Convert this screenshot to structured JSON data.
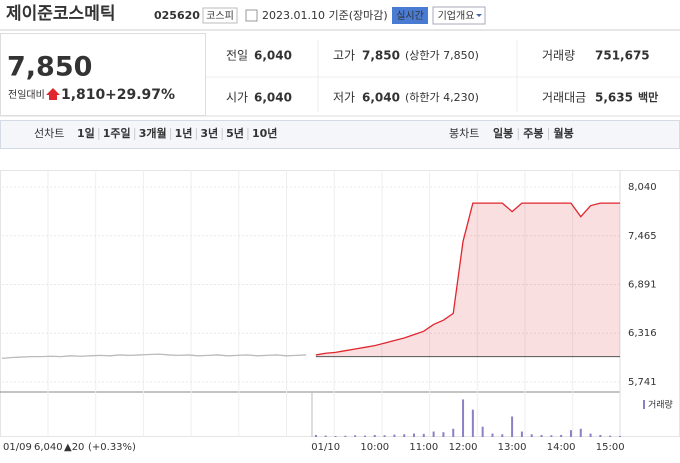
{
  "header": {
    "title": "제이준코스메틱",
    "code": "025620",
    "market": "코스피",
    "date": "2023.01.10 기준(장마감)",
    "realtime": "실시간",
    "overview": "기업개요"
  },
  "price": {
    "current": "7,850",
    "change_label": "전일대비",
    "change": "1,810",
    "change_pct": "+29.97%"
  },
  "info": {
    "rows": [
      [
        {
          "label": "전일",
          "value": "6,040"
        },
        {
          "label": "고가",
          "value": "7,850",
          "note": "(상한가 7,850)"
        },
        {
          "label": "거래량",
          "value": "751,675"
        }
      ],
      [
        {
          "label": "시가",
          "value": "6,040"
        },
        {
          "label": "저가",
          "value": "6,040",
          "note": "(하한가 4,230)"
        },
        {
          "label": "거래대금",
          "value": "5,635",
          "unit": "백만"
        }
      ]
    ]
  },
  "tabs": {
    "line_label": "선차트",
    "periods": [
      "1일",
      "1주일",
      "3개월",
      "1년",
      "3년",
      "5년",
      "10년"
    ],
    "candle_label": "봉차트",
    "candles": [
      "일봉",
      "주봉",
      "월봉"
    ]
  },
  "chart_data": {
    "type": "line",
    "categories": [
      null,
      null,
      null,
      null,
      null,
      null,
      null,
      null,
      null,
      null,
      null,
      null,
      null,
      null,
      null,
      null,
      null,
      null,
      null,
      null,
      null,
      null,
      null,
      null,
      null,
      null,
      null,
      null,
      null,
      null,
      null,
      null,
      null,
      "01/10",
      null,
      null,
      null,
      null,
      "10:00",
      null,
      null,
      null,
      null,
      "11:00",
      null,
      null,
      null,
      "12:00",
      null,
      null,
      null,
      null,
      "13:00",
      null,
      null,
      null,
      null,
      "14:00",
      null,
      null,
      null,
      null,
      "15:00",
      null
    ],
    "series": [
      {
        "color": "#bbbbbb",
        "values": [
          6020,
          6030,
          6035,
          6040,
          6040,
          6045,
          6040,
          6050,
          6045,
          6050,
          6055,
          6050,
          6060,
          6055,
          6060,
          6065,
          6070,
          6060,
          6055,
          6060,
          6050,
          6055,
          6060,
          6050,
          6055,
          6060,
          6050,
          6055,
          6060,
          6050,
          6055,
          6060,
          null,
          null,
          null,
          null,
          null,
          null,
          null,
          null,
          null,
          null,
          null,
          null,
          null,
          null,
          null,
          null,
          null,
          null,
          null,
          null,
          null,
          null,
          null,
          null,
          null,
          null,
          null,
          null,
          null,
          null,
          null,
          null
        ]
      },
      {
        "color": "#e0262e",
        "values": [
          null,
          null,
          null,
          null,
          null,
          null,
          null,
          null,
          null,
          null,
          null,
          null,
          null,
          null,
          null,
          null,
          null,
          null,
          null,
          null,
          null,
          null,
          null,
          null,
          null,
          null,
          null,
          null,
          null,
          null,
          null,
          null,
          6060,
          6080,
          6090,
          6110,
          6130,
          6150,
          6170,
          6200,
          6230,
          6260,
          6300,
          6340,
          6420,
          6470,
          6550,
          7400,
          7850,
          7850,
          7850,
          7850,
          7750,
          7850,
          7850,
          7850,
          7850,
          7850,
          7850,
          7690,
          7820,
          7850,
          7850,
          7850
        ]
      },
      {
        "name": "거래량",
        "color": "#8c7fc6",
        "axis": "y2",
        "values": [
          null,
          null,
          null,
          null,
          null,
          null,
          null,
          null,
          null,
          null,
          null,
          null,
          null,
          null,
          null,
          null,
          null,
          null,
          null,
          null,
          null,
          null,
          null,
          null,
          null,
          null,
          null,
          null,
          null,
          null,
          null,
          null,
          3000,
          2000,
          1500,
          1800,
          2500,
          2000,
          3000,
          2500,
          3500,
          4000,
          5000,
          4500,
          8000,
          7000,
          12000,
          55000,
          40000,
          15000,
          5000,
          4000,
          30000,
          8000,
          4000,
          3000,
          2500,
          3000,
          10000,
          12000,
          5000,
          3000,
          2000,
          1500
        ]
      }
    ],
    "reference": 6040,
    "ylim": [
      5741,
      8040
    ],
    "yticks": [
      {
        "value": 5741,
        "label": "5,741"
      },
      {
        "value": 6316,
        "label": "6,316"
      },
      {
        "value": 6891,
        "label": "6,891"
      },
      {
        "value": 7465,
        "label": "7,465"
      },
      {
        "value": 8040,
        "label": "8,040"
      }
    ],
    "y2lim": [
      0,
      60000
    ],
    "grid": true
  },
  "footer": {
    "date": "01/09",
    "price": "6,040",
    "change": "▲20",
    "pct": "(+0.33%)"
  }
}
